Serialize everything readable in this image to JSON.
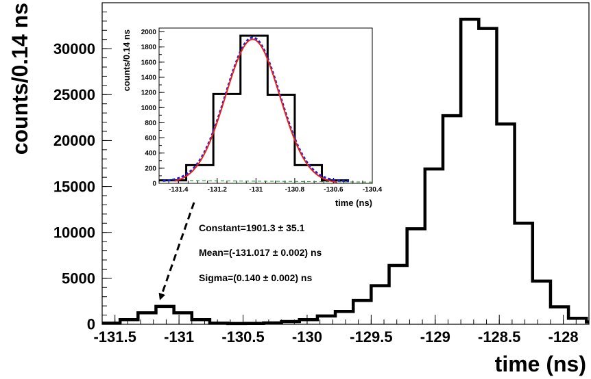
{
  "chart_data": [
    {
      "type": "histogram",
      "xlabel": "time (ns)",
      "ylabel": "counts/0.14 ns",
      "xlim": [
        -131.6,
        -127.8
      ],
      "ylim": [
        0,
        35000
      ],
      "x_ticks": [
        -131.5,
        -131,
        -130.5,
        -130,
        -129.5,
        -129,
        -128.5,
        -128
      ],
      "x_tick_labels": [
        "-131.5",
        "-131",
        "-130.5",
        "-130",
        "-129.5",
        "-129",
        "-128.5",
        "-128"
      ],
      "y_ticks": [
        0,
        5000,
        10000,
        15000,
        20000,
        25000,
        30000
      ],
      "y_tick_labels": [
        "0",
        "5000",
        "10000",
        "15000",
        "20000",
        "25000",
        "30000"
      ],
      "bin_width": 0.14,
      "bin_edges_start": -131.6,
      "values": [
        120,
        500,
        1250,
        1950,
        1250,
        500,
        120,
        80,
        90,
        150,
        300,
        500,
        900,
        1400,
        2600,
        4200,
        6400,
        10400,
        16900,
        22700,
        33200,
        32200,
        21800,
        11000,
        4700,
        1900,
        650,
        250
      ]
    },
    {
      "type": "histogram",
      "inset": true,
      "xlabel": "time (ns)",
      "ylabel": "counts/0.14 ns",
      "xlim": [
        -131.5,
        -130.4
      ],
      "ylim": [
        0,
        2050
      ],
      "x_ticks": [
        -131.4,
        -131.2,
        -131,
        -130.8,
        -130.6,
        -130.4
      ],
      "x_tick_labels": [
        "-131.4",
        "-131.2",
        "-131",
        "-130.8",
        "-130.6",
        "-130.4"
      ],
      "y_ticks": [
        0,
        200,
        400,
        600,
        800,
        1000,
        1200,
        1400,
        1600,
        1800,
        2000
      ],
      "y_tick_labels": [
        "0",
        "200",
        "400",
        "600",
        "800",
        "1000",
        "1200",
        "1400",
        "1600",
        "1800",
        "2000"
      ],
      "bin_width": 0.14,
      "bin_edges_start": -131.5,
      "values": [
        40,
        240,
        1180,
        1950,
        1170,
        240,
        40
      ],
      "fit": {
        "function": "gaussian",
        "constant": 1901.3,
        "mean": -131.017,
        "sigma": 0.14,
        "background": 40,
        "fit_color": "#e8201c",
        "total_color": "#1a1fd6",
        "background_color": "#2f9a2f"
      },
      "annotations": [
        "Constant=1901.3 ± 35.1",
        "Mean=(-131.017 ± 0.002) ns",
        "Sigma=(0.140 ± 0.002) ns"
      ]
    }
  ]
}
